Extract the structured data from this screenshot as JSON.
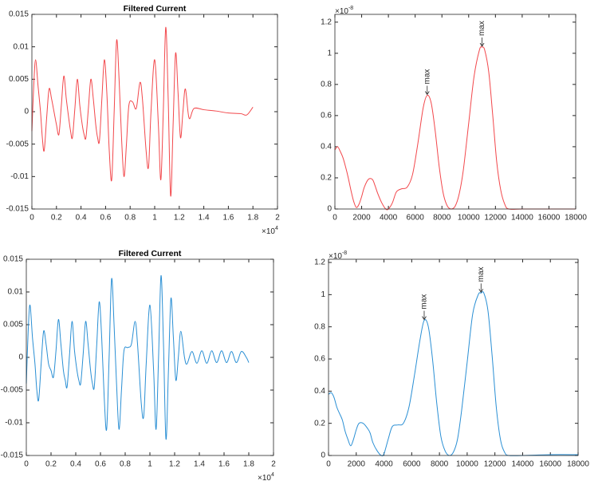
{
  "chart_data": [
    {
      "type": "line",
      "title": "Filtered Current",
      "x_multiplier": "×10",
      "x_multiplier_exponent": "4",
      "xlim": [
        0,
        2
      ],
      "xticks": [
        0,
        0.2,
        0.4,
        0.6,
        0.8,
        1,
        1.2,
        1.4,
        1.6,
        1.8,
        2
      ],
      "ylim": [
        -0.015,
        0.015
      ],
      "yticks": [
        -0.015,
        -0.01,
        -0.005,
        0,
        0.005,
        0.01,
        0.015
      ],
      "x": [
        0,
        0.015,
        0.03,
        0.05,
        0.07,
        0.085,
        0.1,
        0.12,
        0.14,
        0.16,
        0.18,
        0.2,
        0.22,
        0.24,
        0.26,
        0.28,
        0.3,
        0.315,
        0.33,
        0.35,
        0.37,
        0.39,
        0.41,
        0.425,
        0.44,
        0.46,
        0.48,
        0.5,
        0.52,
        0.535,
        0.55,
        0.57,
        0.59,
        0.61,
        0.63,
        0.65,
        0.67,
        0.69,
        0.71,
        0.73,
        0.75,
        0.77,
        0.79,
        0.82,
        0.85,
        0.88,
        0.9,
        0.93,
        0.95,
        0.97,
        1.0,
        1.03,
        1.05,
        1.07,
        1.09,
        1.11,
        1.13,
        1.15,
        1.17,
        1.19,
        1.21,
        1.23,
        1.25,
        1.28,
        1.32,
        1.4,
        1.5,
        1.6,
        1.7,
        1.75,
        1.8
      ],
      "series": [
        {
          "color": "#f2474b",
          "values": [
            -0.003,
            0.004,
            0.008,
            0.004,
            0.0,
            -0.004,
            -0.006,
            -0.001,
            0.0035,
            0.002,
            0.0,
            -0.002,
            -0.0035,
            0.001,
            0.0055,
            0.002,
            -0.001,
            -0.003,
            -0.004,
            0.0005,
            0.005,
            0.001,
            -0.002,
            -0.0035,
            -0.004,
            0.0005,
            0.005,
            0.002,
            -0.002,
            -0.004,
            -0.0045,
            0.002,
            0.008,
            0.003,
            -0.006,
            -0.0105,
            0.0,
            0.011,
            0.005,
            -0.004,
            -0.01,
            -0.005,
            0.001,
            0.0015,
            0.0005,
            0.0045,
            0.002,
            -0.006,
            -0.0085,
            0.0,
            0.008,
            -0.002,
            -0.0105,
            0.0,
            0.013,
            0.002,
            -0.013,
            -0.002,
            0.009,
            0.003,
            -0.004,
            0.0,
            0.0035,
            -0.001,
            0.0005,
            0.0003,
            0.0001,
            -0.0002,
            -0.0003,
            -0.0005,
            0.0007
          ]
        }
      ]
    },
    {
      "type": "line",
      "y_multiplier": "×10",
      "y_multiplier_exponent": "-8",
      "xlim": [
        0,
        18000
      ],
      "xticks": [
        0,
        2000,
        4000,
        6000,
        8000,
        10000,
        12000,
        14000,
        16000,
        18000
      ],
      "ylim": [
        0,
        1.25
      ],
      "yticks": [
        0,
        0.2,
        0.4,
        0.6,
        0.8,
        1,
        1.2
      ],
      "x": [
        0,
        200,
        400,
        600,
        800,
        1000,
        1200,
        1400,
        1600,
        1800,
        2000,
        2200,
        2500,
        2800,
        3000,
        3200,
        3500,
        3800,
        4000,
        4300,
        4600,
        5000,
        5400,
        5800,
        6200,
        6600,
        6900,
        7200,
        7500,
        7800,
        8100,
        8400,
        8700,
        9000,
        9300,
        9600,
        10000,
        10400,
        10800,
        11000,
        11200,
        11500,
        11800,
        12100,
        12400,
        12700,
        13000,
        14000,
        16000,
        18000
      ],
      "series": [
        {
          "color": "#f2474b",
          "values": [
            0.38,
            0.4,
            0.37,
            0.33,
            0.27,
            0.2,
            0.12,
            0.05,
            0.01,
            0.03,
            0.08,
            0.14,
            0.19,
            0.19,
            0.15,
            0.1,
            0.04,
            0,
            0,
            0.04,
            0.11,
            0.13,
            0.14,
            0.22,
            0.42,
            0.65,
            0.73,
            0.68,
            0.5,
            0.27,
            0.1,
            0.02,
            0,
            0.02,
            0.1,
            0.25,
            0.55,
            0.85,
            1.02,
            1.04,
            1.02,
            0.88,
            0.6,
            0.3,
            0.12,
            0.03,
            0,
            0,
            0,
            0
          ]
        }
      ],
      "annotations": [
        {
          "text": "max",
          "x": 6900,
          "y": 0.73
        },
        {
          "text": "max",
          "x": 11000,
          "y": 1.04
        }
      ]
    },
    {
      "type": "line",
      "title": "Filtered Current",
      "x_multiplier": "×10",
      "x_multiplier_exponent": "4",
      "xlim": [
        0,
        2
      ],
      "xticks": [
        0,
        0.2,
        0.4,
        0.6,
        0.8,
        1,
        1.2,
        1.4,
        1.6,
        1.8,
        2
      ],
      "ylim": [
        -0.015,
        0.015
      ],
      "yticks": [
        -0.015,
        -0.01,
        -0.005,
        0,
        0.005,
        0.01,
        0.015
      ],
      "x": [
        0,
        0.015,
        0.03,
        0.05,
        0.07,
        0.085,
        0.1,
        0.12,
        0.14,
        0.16,
        0.18,
        0.2,
        0.22,
        0.24,
        0.26,
        0.28,
        0.3,
        0.315,
        0.33,
        0.35,
        0.37,
        0.39,
        0.41,
        0.425,
        0.44,
        0.46,
        0.48,
        0.5,
        0.52,
        0.535,
        0.55,
        0.57,
        0.59,
        0.61,
        0.63,
        0.65,
        0.67,
        0.69,
        0.71,
        0.73,
        0.75,
        0.77,
        0.79,
        0.82,
        0.85,
        0.88,
        0.9,
        0.93,
        0.95,
        0.97,
        1.0,
        1.03,
        1.05,
        1.07,
        1.09,
        1.11,
        1.13,
        1.15,
        1.17,
        1.19,
        1.21,
        1.23,
        1.25,
        1.28,
        1.3,
        1.34,
        1.38,
        1.42,
        1.46,
        1.5,
        1.54,
        1.58,
        1.62,
        1.66,
        1.7,
        1.74,
        1.78,
        1.8
      ],
      "series": [
        {
          "color": "#2a8fd4",
          "values": [
            -0.004,
            0.004,
            0.008,
            0.003,
            -0.001,
            -0.005,
            -0.0065,
            -0.001,
            0.004,
            0.002,
            -0.001,
            -0.002,
            -0.003,
            0.001,
            0.0058,
            0.002,
            -0.002,
            -0.0035,
            -0.0045,
            0.0005,
            0.0055,
            0.001,
            -0.002,
            -0.0035,
            -0.004,
            0.0005,
            0.0055,
            0.002,
            -0.002,
            -0.004,
            -0.0045,
            0.002,
            0.0085,
            0.003,
            -0.006,
            -0.011,
            0.0,
            0.012,
            0.005,
            -0.004,
            -0.011,
            -0.005,
            0.001,
            0.0015,
            0.002,
            0.0055,
            0.002,
            -0.007,
            -0.009,
            -0.001,
            0.008,
            -0.002,
            -0.011,
            0.0,
            0.0125,
            0.002,
            -0.0125,
            -0.002,
            0.009,
            0.003,
            -0.0035,
            0.0,
            0.004,
            0.0,
            -0.001,
            0.0009,
            -0.0009,
            0.001,
            -0.0009,
            0.001,
            -0.0008,
            0.001,
            -0.0008,
            0.0009,
            -0.0008,
            0.0009,
            0.0,
            -0.0008
          ]
        }
      ]
    },
    {
      "type": "line",
      "y_multiplier": "×10",
      "y_multiplier_exponent": "-8",
      "xlim": [
        0,
        18000
      ],
      "xticks": [
        0,
        2000,
        4000,
        6000,
        8000,
        10000,
        12000,
        14000,
        16000,
        18000
      ],
      "ylim": [
        0,
        1.22
      ],
      "yticks": [
        0,
        0.2,
        0.4,
        0.6,
        0.8,
        1,
        1.2
      ],
      "x": [
        0,
        200,
        400,
        600,
        800,
        1000,
        1200,
        1400,
        1600,
        1800,
        2000,
        2200,
        2500,
        2800,
        3000,
        3200,
        3500,
        3800,
        4000,
        4300,
        4600,
        5000,
        5400,
        5800,
        6200,
        6600,
        6900,
        7200,
        7500,
        7800,
        8100,
        8400,
        8700,
        9000,
        9300,
        9600,
        10000,
        10400,
        10800,
        11000,
        11200,
        11500,
        11800,
        12100,
        12400,
        12700,
        13000,
        14000,
        16000,
        18000
      ],
      "series": [
        {
          "color": "#2a8fd4",
          "values": [
            0.38,
            0.39,
            0.36,
            0.3,
            0.26,
            0.22,
            0.15,
            0.1,
            0.06,
            0.1,
            0.16,
            0.2,
            0.2,
            0.17,
            0.14,
            0.08,
            0.03,
            0,
            0.01,
            0.1,
            0.18,
            0.19,
            0.2,
            0.3,
            0.5,
            0.72,
            0.84,
            0.8,
            0.6,
            0.33,
            0.12,
            0.03,
            0,
            0.02,
            0.1,
            0.28,
            0.58,
            0.88,
            1.0,
            1.01,
            1.01,
            0.9,
            0.62,
            0.3,
            0.1,
            0.02,
            0,
            0,
            0.005,
            0.005
          ]
        }
      ],
      "annotations": [
        {
          "text": "max",
          "x": 6900,
          "y": 0.84
        },
        {
          "text": "max",
          "x": 11000,
          "y": 1.01
        }
      ]
    }
  ]
}
